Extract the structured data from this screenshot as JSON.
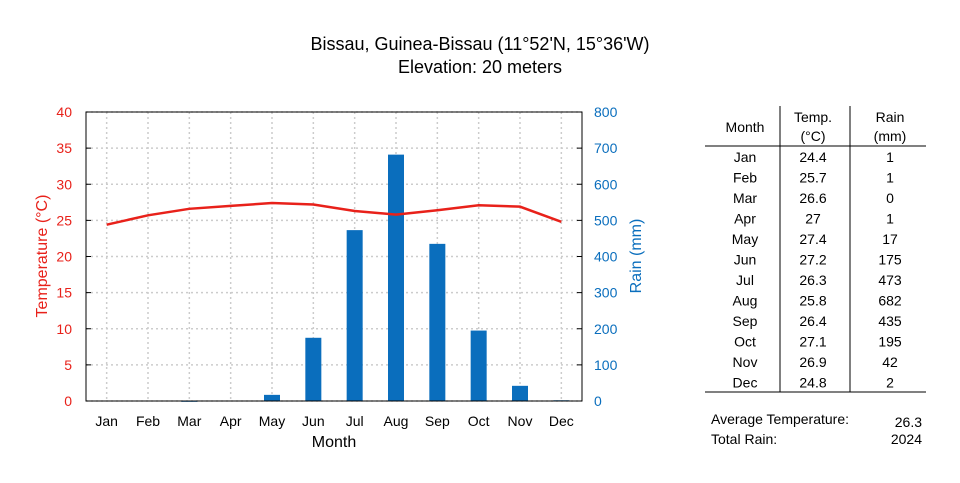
{
  "chart_data": {
    "type": "bar+line",
    "title": "Bissau, Guinea-Bissau (11°52'N, 15°36'W)",
    "subtitle": "Elevation: 20 meters",
    "xlabel": "Month",
    "ylabel_left": "Temperature (°C)",
    "ylabel_right": "Rain (mm)",
    "categories": [
      "Jan",
      "Feb",
      "Mar",
      "Apr",
      "May",
      "Jun",
      "Jul",
      "Aug",
      "Sep",
      "Oct",
      "Nov",
      "Dec"
    ],
    "ylim_left": [
      0,
      40
    ],
    "ylim_right": [
      0,
      800
    ],
    "yticks_left": [
      "0",
      "5",
      "10",
      "15",
      "20",
      "25",
      "30",
      "35",
      "40"
    ],
    "yticks_right": [
      "0",
      "100",
      "200",
      "300",
      "400",
      "500",
      "600",
      "700",
      "800"
    ],
    "grid": true,
    "series": [
      {
        "name": "Temp. (°C)",
        "type": "line",
        "axis": "left",
        "color": "#e8211a",
        "values": [
          24.4,
          25.7,
          26.6,
          27,
          27.4,
          27.2,
          26.3,
          25.8,
          26.4,
          27.1,
          26.9,
          24.8
        ]
      },
      {
        "name": "Rain (mm)",
        "type": "bar",
        "axis": "right",
        "color": "#0a6ebd",
        "values": [
          1,
          1,
          0,
          1,
          17,
          175,
          473,
          682,
          435,
          195,
          42,
          2
        ]
      }
    ],
    "colors": {
      "left_axis": "#e8211a",
      "right_axis": "#0a6ebd"
    }
  },
  "table": {
    "headers": {
      "month": "Month",
      "temp1": "Temp.",
      "temp2": "(°C)",
      "rain1": "Rain",
      "rain2": "(mm)"
    },
    "rows": [
      [
        "Jan",
        "24.4",
        "1"
      ],
      [
        "Feb",
        "25.7",
        "1"
      ],
      [
        "Mar",
        "26.6",
        "0"
      ],
      [
        "Apr",
        "27",
        "1"
      ],
      [
        "May",
        "27.4",
        "17"
      ],
      [
        "Jun",
        "27.2",
        "175"
      ],
      [
        "Jul",
        "26.3",
        "473"
      ],
      [
        "Aug",
        "25.8",
        "682"
      ],
      [
        "Sep",
        "26.4",
        "435"
      ],
      [
        "Oct",
        "27.1",
        "195"
      ],
      [
        "Nov",
        "26.9",
        "42"
      ],
      [
        "Dec",
        "24.8",
        "2"
      ]
    ],
    "summary": [
      {
        "label": "Average Temperature:",
        "value": "26.3"
      },
      {
        "label": "Total Rain:",
        "value": "2024"
      }
    ]
  }
}
